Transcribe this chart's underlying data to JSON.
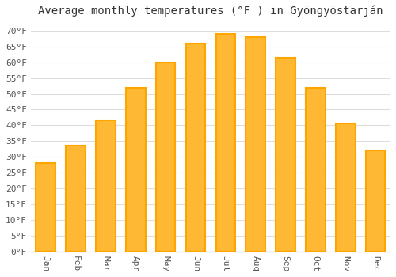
{
  "title": "Average monthly temperatures (°F ) in Gyöngyöstarján",
  "months": [
    "Jan",
    "Feb",
    "Mar",
    "Apr",
    "May",
    "Jun",
    "Jul",
    "Aug",
    "Sep",
    "Oct",
    "Nov",
    "Dec"
  ],
  "values": [
    28,
    33.5,
    41.5,
    52,
    60,
    66,
    69,
    68,
    61.5,
    52,
    40.5,
    32
  ],
  "bar_color": "#FFA500",
  "bar_color_inner": "#FFB833",
  "background_color": "#FFFFFF",
  "grid_color": "#DDDDDD",
  "ylim": [
    0,
    73
  ],
  "yticks": [
    0,
    5,
    10,
    15,
    20,
    25,
    30,
    35,
    40,
    45,
    50,
    55,
    60,
    65,
    70
  ],
  "title_fontsize": 10,
  "tick_fontsize": 8,
  "tick_font_family": "monospace"
}
